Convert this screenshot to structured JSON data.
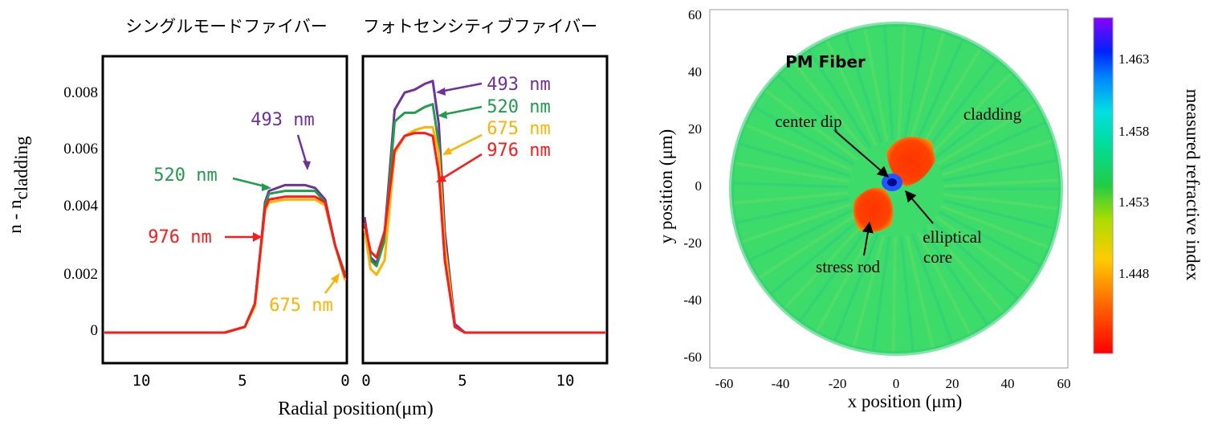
{
  "left_figure": {
    "panel_titles": [
      "シングルモードファイバー",
      "フォトセンシティブファイバー"
    ],
    "ylabel_main": "n - n",
    "ylabel_sub": "cladding",
    "xlabel": "Radial position(μm)",
    "y_ticks": [
      "0",
      "0.002",
      "0.004",
      "0.006",
      "0.008"
    ],
    "x_ticks_left": [
      "10",
      "5",
      "0"
    ],
    "x_ticks_right": [
      "0",
      "5",
      "10"
    ]
  },
  "chart_data": [
    {
      "type": "line",
      "title": "シングルモードファイバー",
      "xlabel": "Radial position(μm)",
      "ylabel": "n - ncladding",
      "xlim": [
        12,
        0
      ],
      "ylim": [
        -0.001,
        0.0095
      ],
      "series": [
        {
          "name": "493 nm",
          "color": "#7030a0",
          "x": [
            12,
            10,
            8,
            6,
            5,
            4.5,
            4.2,
            4,
            3.8,
            3,
            2,
            1.5,
            1,
            0.5,
            0
          ],
          "y": [
            0,
            0,
            0,
            0,
            0.0002,
            0.001,
            0.003,
            0.0045,
            0.0049,
            0.0051,
            0.0051,
            0.005,
            0.0046,
            0.003,
            0.002
          ]
        },
        {
          "name": "520 nm",
          "color": "#1e9e4a",
          "x": [
            12,
            10,
            8,
            6,
            5,
            4.5,
            4.2,
            4,
            3.8,
            3,
            2,
            1.5,
            1,
            0.5,
            0
          ],
          "y": [
            0,
            0,
            0,
            0,
            0.0002,
            0.001,
            0.003,
            0.0044,
            0.0048,
            0.0049,
            0.0049,
            0.0049,
            0.0045,
            0.003,
            0.002
          ]
        },
        {
          "name": "675 nm",
          "color": "#ffb300",
          "x": [
            12,
            10,
            8,
            6,
            5,
            4.5,
            4.2,
            4,
            3.8,
            3,
            2,
            1.5,
            1,
            0.5,
            0
          ],
          "y": [
            0,
            0,
            0,
            0,
            0.0002,
            0.0009,
            0.0029,
            0.0042,
            0.0045,
            0.0046,
            0.0046,
            0.0046,
            0.0044,
            0.003,
            0.0018
          ]
        },
        {
          "name": "976 nm",
          "color": "#ff1a1a",
          "x": [
            12,
            10,
            8,
            6,
            5,
            4.5,
            4.2,
            4,
            3.8,
            3,
            2,
            1.5,
            1,
            0.5,
            0
          ],
          "y": [
            0,
            0,
            0,
            0,
            0.0002,
            0.001,
            0.003,
            0.0043,
            0.0046,
            0.0047,
            0.0047,
            0.0047,
            0.0045,
            0.003,
            0.0019
          ]
        }
      ]
    },
    {
      "type": "line",
      "title": "フォトセンシティブファイバー",
      "xlabel": "Radial position(μm)",
      "xlim": [
        0,
        12
      ],
      "ylim": [
        -0.001,
        0.0095
      ],
      "series": [
        {
          "name": "493 nm",
          "color": "#7030a0",
          "x": [
            0,
            0.3,
            0.6,
            1,
            1.5,
            2,
            2.5,
            3,
            3.4,
            3.7,
            4,
            4.5,
            5,
            6,
            8,
            10,
            12
          ],
          "y": [
            0.004,
            0.0026,
            0.0024,
            0.0034,
            0.0077,
            0.0083,
            0.0084,
            0.0086,
            0.0087,
            0.0072,
            0.0035,
            0.0003,
            0,
            0,
            0,
            0,
            0
          ]
        },
        {
          "name": "520 nm",
          "color": "#1e9e4a",
          "x": [
            0,
            0.3,
            0.6,
            1,
            1.5,
            2,
            2.5,
            3,
            3.4,
            3.7,
            4,
            4.5,
            5,
            6,
            8,
            10,
            12
          ],
          "y": [
            0.0038,
            0.0025,
            0.0023,
            0.0032,
            0.0073,
            0.0076,
            0.0076,
            0.0078,
            0.0079,
            0.0065,
            0.0031,
            0.0002,
            0,
            0,
            0,
            0,
            0
          ]
        },
        {
          "name": "675 nm",
          "color": "#ffb300",
          "x": [
            0,
            0.3,
            0.6,
            1,
            1.5,
            2,
            2.5,
            3,
            3.4,
            3.7,
            4,
            4.5,
            5,
            6,
            8,
            10,
            12
          ],
          "y": [
            0.0036,
            0.0022,
            0.002,
            0.0025,
            0.0062,
            0.0068,
            0.007,
            0.0071,
            0.0071,
            0.0062,
            0.003,
            0.0002,
            0,
            0,
            0,
            0,
            0
          ]
        },
        {
          "name": "976 nm",
          "color": "#ff1a1a",
          "x": [
            0,
            0.3,
            0.6,
            1,
            1.5,
            2,
            2.5,
            3,
            3.4,
            3.7,
            4,
            4.5,
            5,
            6,
            8,
            10,
            12
          ],
          "y": [
            0.0038,
            0.0028,
            0.0026,
            0.0035,
            0.0063,
            0.0068,
            0.0069,
            0.0069,
            0.0068,
            0.0055,
            0.0025,
            0.0002,
            0,
            0,
            0,
            0,
            0
          ]
        }
      ]
    },
    {
      "type": "heatmap",
      "title": "PM Fiber",
      "xlabel": "x position (μm)",
      "ylabel": "y position (μm)",
      "xlim": [
        -65,
        65
      ],
      "ylim": [
        -65,
        65
      ],
      "x_ticks": [
        "-60",
        "-40",
        "-20",
        "0",
        "20",
        "40",
        "60"
      ],
      "y_ticks": [
        "60",
        "40",
        "20",
        "0",
        "-20",
        "-40",
        "-60"
      ],
      "colorbar": {
        "label": "measured refractive index",
        "ticks": [
          "1.463",
          "1.458",
          "1.453",
          "1.448"
        ]
      },
      "annotations": [
        "center dip",
        "cladding",
        "elliptical",
        "core",
        "stress rod"
      ]
    }
  ]
}
